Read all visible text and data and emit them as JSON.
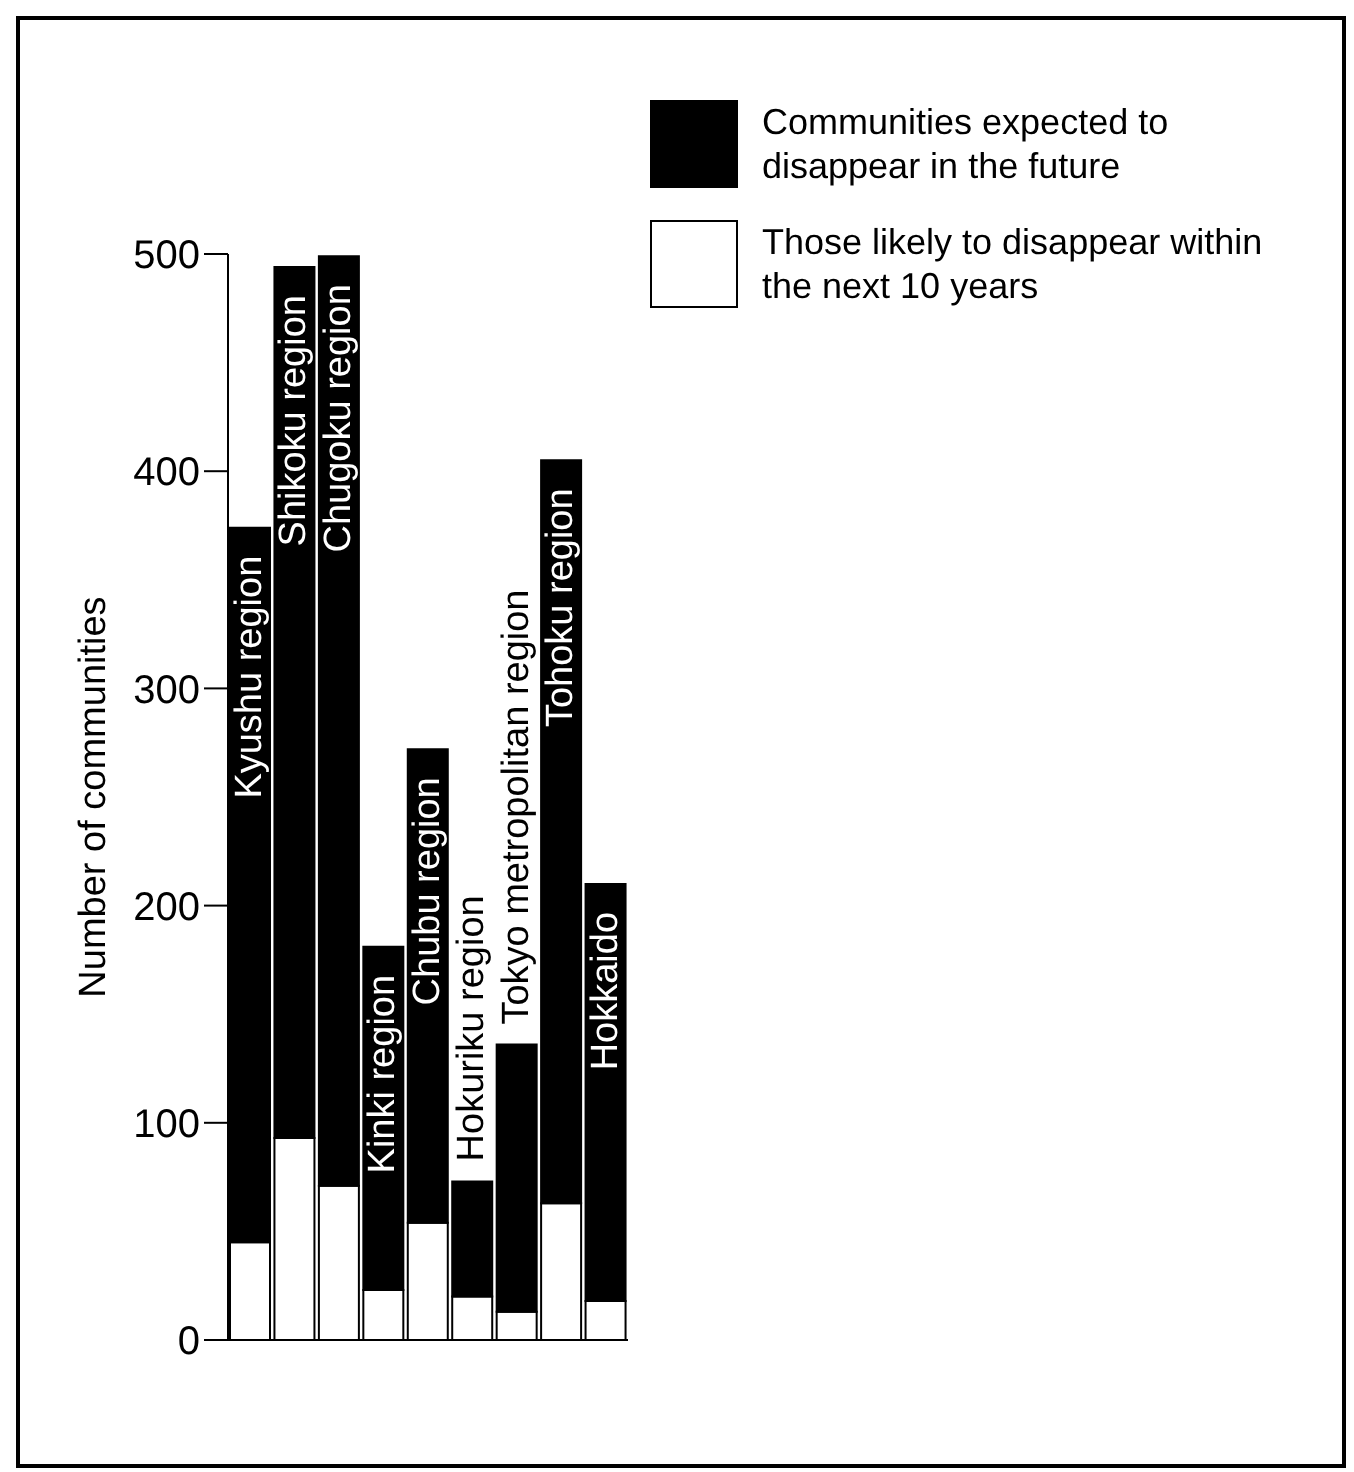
{
  "chart_data": {
    "type": "bar",
    "stacked": true,
    "ylabel": "Number of communities",
    "categories": [
      "Kyushu region",
      "Shikoku region",
      "Chugoku region",
      "Kinki region",
      "Chubu region",
      "Hokuriku region",
      "Tokyo metropolitan region",
      "Tohoku region",
      "Hokkaido"
    ],
    "series": [
      {
        "name": "Those likely to disappear within the next 10 years",
        "color": "#ffffff",
        "values": [
          45,
          93,
          71,
          23,
          54,
          20,
          13,
          63,
          18
        ]
      },
      {
        "name": "Communities expected to disappear in the future",
        "color": "#000000",
        "values": [
          329,
          401,
          428,
          158,
          218,
          53,
          123,
          342,
          192
        ]
      }
    ],
    "ylim": [
      0,
      500
    ],
    "yticks": [
      0,
      100,
      200,
      300,
      400,
      500
    ],
    "grid": false,
    "legend": "top right",
    "tick_labels": "y"
  }
}
